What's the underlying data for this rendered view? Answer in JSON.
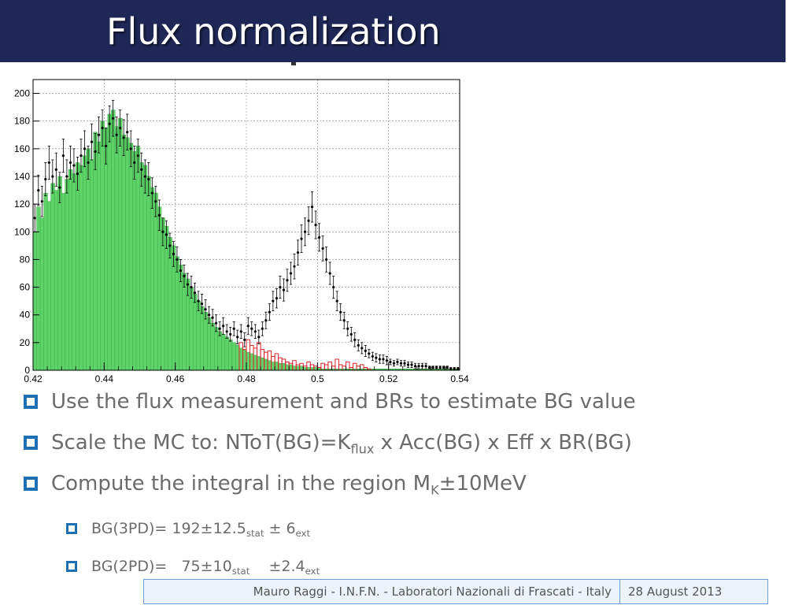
{
  "slide": {
    "title": "Flux normalization",
    "bullets": [
      {
        "text": "Use the flux measurement and BRs to estimate BG value"
      },
      {
        "pre": "Scale the MC to: NToT(BG)=K",
        "sub": "flux",
        "post": " x Acc(BG) x Eff x BR(BG)"
      },
      {
        "pre": "Compute the integral in the region M",
        "sub": "K",
        "post": "±10MeV"
      }
    ],
    "subbullets": [
      {
        "pre": "BG(3PD)= 192±12.5",
        "sub1": "stat",
        "mid": " ± 6",
        "sub2": "ext"
      },
      {
        "pre": "BG(2PD)=   75±10",
        "sub1": "stat",
        "mid": "    ±2.4",
        "sub2": "ext"
      }
    ],
    "footer": {
      "author": "Mauro Raggi - I.N.F.N. - Laboratori Nazionali di Frascati - Italy",
      "date": "28 August 2013"
    }
  },
  "colors": {
    "title_bar": "#1e2756",
    "bullet_box": "#1f6fb5",
    "mc_fill": "#5fd36a",
    "mc_outline": "#2f9e3c",
    "bg_red": "#d9242a",
    "data_points": "#000000"
  },
  "chart_data": {
    "type": "bar",
    "title": "",
    "xlabel": "",
    "ylabel": "",
    "xlim": [
      0.42,
      0.54
    ],
    "ylim": [
      0,
      210
    ],
    "xticks": [
      "0.42",
      "0.44",
      "0.46",
      "0.48",
      "0.5",
      "0.52",
      "0.54"
    ],
    "yticks": [
      "0",
      "20",
      "40",
      "60",
      "80",
      "100",
      "120",
      "140",
      "160",
      "180",
      "200"
    ],
    "grid": true,
    "series": [
      {
        "kind": "mc-histogram",
        "x": [
          0.4205,
          0.4215,
          0.4225,
          0.4235,
          0.4245,
          0.4255,
          0.4265,
          0.4275,
          0.4285,
          0.4295,
          0.4305,
          0.4315,
          0.4325,
          0.4335,
          0.4345,
          0.4355,
          0.4365,
          0.4375,
          0.4385,
          0.4395,
          0.4405,
          0.4415,
          0.4425,
          0.4435,
          0.4445,
          0.4455,
          0.4465,
          0.4475,
          0.4485,
          0.4495,
          0.4505,
          0.4515,
          0.4525,
          0.4535,
          0.4545,
          0.4555,
          0.4565,
          0.4575,
          0.4585,
          0.4595,
          0.4605,
          0.4615,
          0.4625,
          0.4635,
          0.4645,
          0.4655,
          0.4665,
          0.4675,
          0.4685,
          0.4695,
          0.4705,
          0.4715,
          0.4725,
          0.4735,
          0.4745,
          0.4755,
          0.4765,
          0.4775,
          0.4785,
          0.4795,
          0.4805,
          0.4815,
          0.4825,
          0.4835,
          0.4845,
          0.4855,
          0.4865,
          0.4875,
          0.4885,
          0.4895,
          0.4905,
          0.4915,
          0.4925,
          0.4935,
          0.4945,
          0.4955,
          0.4965,
          0.4975,
          0.4985,
          0.4995,
          0.5005,
          0.5015,
          0.5025,
          0.5035,
          0.5045,
          0.5055,
          0.5065,
          0.5075,
          0.5085,
          0.5095,
          0.5105,
          0.5115,
          0.5125,
          0.5135,
          0.5145,
          0.5155,
          0.5165,
          0.5175,
          0.5185,
          0.5195,
          0.5205,
          0.5215,
          0.5225,
          0.5235,
          0.5245,
          0.5255,
          0.5265,
          0.5275,
          0.5285,
          0.5295,
          0.5305,
          0.5315,
          0.5325,
          0.5335,
          0.5345,
          0.5355,
          0.5365,
          0.5375,
          0.5385,
          0.5395
        ],
        "values": [
          100,
          118,
          110,
          128,
          122,
          135,
          130,
          140,
          128,
          138,
          145,
          142,
          150,
          148,
          155,
          160,
          152,
          172,
          165,
          180,
          175,
          185,
          188,
          176,
          182,
          170,
          168,
          164,
          158,
          162,
          150,
          148,
          140,
          132,
          128,
          118,
          110,
          104,
          96,
          90,
          82,
          76,
          70,
          66,
          60,
          55,
          50,
          46,
          42,
          38,
          34,
          31,
          28,
          26,
          24,
          22,
          20,
          18,
          16,
          15,
          13,
          12,
          11,
          10,
          9,
          8,
          7,
          6,
          6,
          5,
          5,
          4,
          4,
          3,
          3,
          3,
          2,
          2,
          2,
          2,
          2,
          1,
          1,
          1,
          1,
          1,
          1,
          1,
          1,
          1,
          1,
          1,
          1,
          1,
          1,
          1,
          1,
          1,
          1,
          1,
          1,
          1,
          1,
          1,
          1,
          1,
          1,
          1,
          1,
          1,
          1,
          1,
          1,
          1,
          1,
          1,
          1,
          1,
          1,
          1
        ]
      },
      {
        "kind": "bg-histogram-red",
        "x": [
          0.4785,
          0.4795,
          0.4805,
          0.4815,
          0.4825,
          0.4835,
          0.4845,
          0.4855,
          0.4865,
          0.4875,
          0.4885,
          0.4895,
          0.4905,
          0.4915,
          0.4925,
          0.4935,
          0.4945,
          0.4955,
          0.4965,
          0.4975,
          0.4985,
          0.4995,
          0.5005,
          0.5015,
          0.5025,
          0.5035,
          0.5045,
          0.5055,
          0.5065,
          0.5075,
          0.5085,
          0.5095,
          0.5105,
          0.5115,
          0.5125,
          0.5135,
          0.5145
        ],
        "values": [
          20,
          15,
          22,
          18,
          16,
          20,
          15,
          13,
          14,
          10,
          12,
          9,
          8,
          6,
          5,
          7,
          4,
          5,
          3,
          6,
          4,
          3,
          2,
          5,
          4,
          6,
          3,
          8,
          4,
          3,
          6,
          2,
          5,
          3,
          4,
          2,
          1
        ]
      },
      {
        "kind": "data-points",
        "x": [
          0.4205,
          0.4215,
          0.4225,
          0.4235,
          0.4245,
          0.4255,
          0.4265,
          0.4275,
          0.4285,
          0.4295,
          0.4305,
          0.4315,
          0.4325,
          0.4335,
          0.4345,
          0.4355,
          0.4365,
          0.4375,
          0.4385,
          0.4395,
          0.4405,
          0.4415,
          0.4425,
          0.4435,
          0.4445,
          0.4455,
          0.4465,
          0.4475,
          0.4485,
          0.4495,
          0.4505,
          0.4515,
          0.4525,
          0.4535,
          0.4545,
          0.4555,
          0.4565,
          0.4575,
          0.4585,
          0.4595,
          0.4605,
          0.4615,
          0.4625,
          0.4635,
          0.4645,
          0.4655,
          0.4665,
          0.4675,
          0.4685,
          0.4695,
          0.4705,
          0.4715,
          0.4725,
          0.4735,
          0.4745,
          0.4755,
          0.4765,
          0.4775,
          0.4785,
          0.4795,
          0.4805,
          0.4815,
          0.4825,
          0.4835,
          0.4845,
          0.4855,
          0.4865,
          0.4875,
          0.4885,
          0.4895,
          0.4905,
          0.4915,
          0.4925,
          0.4935,
          0.4945,
          0.4955,
          0.4965,
          0.4975,
          0.4985,
          0.4995,
          0.5005,
          0.5015,
          0.5025,
          0.5035,
          0.5045,
          0.5055,
          0.5065,
          0.5075,
          0.5085,
          0.5095,
          0.5105,
          0.5115,
          0.5125,
          0.5135,
          0.5145,
          0.5155,
          0.5165,
          0.5175,
          0.5185,
          0.5195,
          0.5205,
          0.5215,
          0.5225,
          0.5235,
          0.5245,
          0.5255,
          0.5265,
          0.5275,
          0.5285,
          0.5295,
          0.5305,
          0.5315,
          0.5325,
          0.5335,
          0.5345,
          0.5355,
          0.5365,
          0.5375,
          0.5385,
          0.5395
        ],
        "values": [
          110,
          130,
          122,
          138,
          150,
          140,
          145,
          132,
          155,
          140,
          150,
          148,
          142,
          155,
          160,
          150,
          165,
          158,
          170,
          175,
          162,
          178,
          182,
          170,
          175,
          168,
          172,
          160,
          150,
          155,
          145,
          140,
          138,
          128,
          122,
          112,
          100,
          98,
          90,
          84,
          80,
          72,
          68,
          62,
          60,
          56,
          50,
          48,
          44,
          40,
          38,
          34,
          30,
          32,
          28,
          26,
          30,
          24,
          28,
          22,
          32,
          30,
          28,
          24,
          30,
          36,
          42,
          50,
          52,
          60,
          58,
          65,
          70,
          75,
          85,
          95,
          100,
          108,
          118,
          105,
          96,
          88,
          80,
          70,
          60,
          50,
          42,
          36,
          30,
          26,
          22,
          18,
          16,
          14,
          12,
          10,
          9,
          8,
          8,
          7,
          6,
          5,
          6,
          5,
          5,
          4,
          4,
          3,
          3,
          3,
          3,
          2,
          2,
          2,
          2,
          2,
          2,
          1,
          1,
          1
        ],
        "errors": [
          10,
          11,
          11,
          12,
          12,
          12,
          12,
          11,
          12,
          12,
          12,
          12,
          12,
          12,
          13,
          12,
          13,
          13,
          13,
          13,
          13,
          13,
          13,
          13,
          13,
          13,
          13,
          13,
          12,
          12,
          12,
          12,
          12,
          11,
          11,
          11,
          10,
          10,
          9,
          9,
          9,
          8,
          8,
          8,
          8,
          7,
          7,
          7,
          7,
          6,
          6,
          6,
          5,
          6,
          5,
          5,
          5,
          5,
          5,
          5,
          6,
          5,
          5,
          5,
          5,
          6,
          6,
          7,
          7,
          8,
          8,
          8,
          8,
          9,
          9,
          10,
          10,
          10,
          11,
          10,
          10,
          9,
          9,
          8,
          8,
          7,
          6,
          6,
          5,
          5,
          5,
          4,
          4,
          4,
          3,
          3,
          3,
          3,
          3,
          3,
          2,
          2,
          2,
          2,
          2,
          2,
          2,
          2,
          2,
          2,
          2,
          1,
          1,
          1,
          1,
          1,
          1,
          1,
          1,
          1
        ]
      }
    ]
  }
}
